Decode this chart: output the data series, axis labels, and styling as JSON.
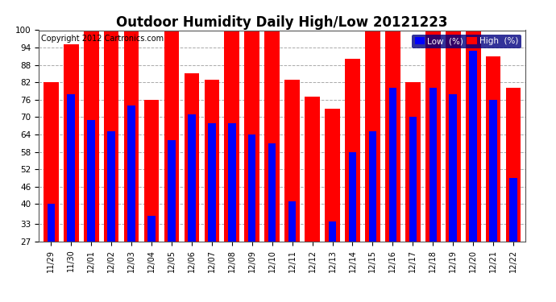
{
  "title": "Outdoor Humidity Daily High/Low 20121223",
  "copyright": "Copyright 2012 Cartronics.com",
  "legend_low": "Low  (%)",
  "legend_high": "High  (%)",
  "dates": [
    "11/29",
    "11/30",
    "12/01",
    "12/02",
    "12/03",
    "12/04",
    "12/05",
    "12/06",
    "12/07",
    "12/08",
    "12/09",
    "12/10",
    "12/11",
    "12/12",
    "12/13",
    "12/14",
    "12/15",
    "12/16",
    "12/17",
    "12/18",
    "12/19",
    "12/20",
    "12/21",
    "12/22"
  ],
  "high": [
    82,
    95,
    100,
    100,
    100,
    76,
    100,
    85,
    83,
    100,
    100,
    100,
    83,
    77,
    73,
    90,
    100,
    100,
    82,
    100,
    100,
    100,
    91,
    80
  ],
  "low": [
    40,
    78,
    69,
    65,
    74,
    36,
    62,
    71,
    68,
    68,
    64,
    61,
    41,
    27,
    34,
    58,
    65,
    80,
    70,
    80,
    78,
    93,
    76,
    49
  ],
  "bar_color_high": "#ff0000",
  "bar_color_low": "#0000ff",
  "background_color": "#ffffff",
  "grid_color": "#aaaaaa",
  "title_fontsize": 12,
  "copyright_fontsize": 7,
  "yticks": [
    27,
    33,
    40,
    46,
    52,
    58,
    64,
    70,
    76,
    82,
    88,
    94,
    100
  ],
  "ymin": 27,
  "ymax": 100,
  "bar_bottom": 27
}
